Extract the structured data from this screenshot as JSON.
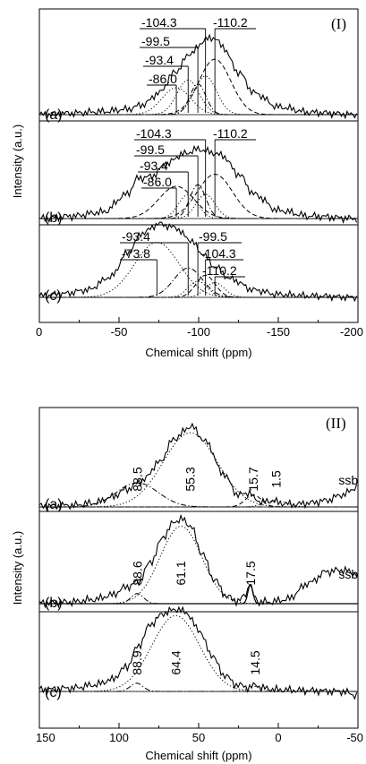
{
  "chart_data": [
    {
      "type": "line",
      "panel_label": "(I)",
      "xlabel": "Chemical shift (ppm)",
      "ylabel": "Intensity (a.u.)",
      "xlim": [
        0,
        -200
      ],
      "xticks": [
        {
          "value": 0,
          "label": "0"
        },
        {
          "value": -50,
          "label": "-50"
        },
        {
          "value": -100,
          "label": "-100"
        },
        {
          "value": -150,
          "label": "-150"
        },
        {
          "value": -200,
          "label": "-200"
        }
      ],
      "spectra": [
        {
          "label": "(a)",
          "measured": {
            "x": [
              0,
              -20,
              -40,
              -55,
              -65,
              -75,
              -85,
              -95,
              -105,
              -110,
              -115,
              -125,
              -135,
              -150,
              -170,
              -200
            ],
            "y": [
              0.0,
              0.02,
              0.04,
              0.07,
              0.13,
              0.28,
              0.55,
              0.8,
              0.98,
              1.0,
              0.88,
              0.55,
              0.28,
              0.1,
              0.03,
              0.0
            ]
          },
          "components": [
            {
              "center": -86.0,
              "height": 0.35,
              "width": 9,
              "style": "dotted"
            },
            {
              "center": -93.4,
              "height": 0.45,
              "width": 7,
              "style": "dotted"
            },
            {
              "center": -99.5,
              "height": 0.4,
              "width": 5,
              "style": "dashdot"
            },
            {
              "center": -104.3,
              "height": 0.5,
              "width": 7,
              "style": "dotted"
            },
            {
              "center": -110.2,
              "height": 0.72,
              "width": 10,
              "style": "dashed"
            }
          ],
          "peak_labels": [
            {
              "text": "-104.3",
              "x": -104.3,
              "row": 0,
              "side": "left"
            },
            {
              "text": "-99.5",
              "x": -99.5,
              "row": 1,
              "side": "left"
            },
            {
              "text": "-93.4",
              "x": -93.4,
              "row": 2,
              "side": "left"
            },
            {
              "text": "-86.0",
              "x": -86.0,
              "row": 3,
              "side": "left"
            },
            {
              "text": "-110.2",
              "x": -110.2,
              "row": 0,
              "side": "right"
            }
          ]
        },
        {
          "label": "(b)",
          "measured": {
            "x": [
              0,
              -20,
              -40,
              -55,
              -62,
              -70,
              -80,
              -90,
              -100,
              -108,
              -115,
              -125,
              -135,
              -150,
              -170,
              -200
            ],
            "y": [
              0.0,
              0.03,
              0.08,
              0.3,
              0.5,
              0.52,
              0.68,
              0.8,
              0.86,
              0.82,
              0.78,
              0.55,
              0.3,
              0.1,
              0.03,
              0.0
            ]
          },
          "components": [
            {
              "center": -86.0,
              "height": 0.4,
              "width": 11,
              "style": "dashed"
            },
            {
              "center": -93.4,
              "height": 0.3,
              "width": 6,
              "style": "dotted"
            },
            {
              "center": -99.5,
              "height": 0.42,
              "width": 5,
              "style": "dashdot"
            },
            {
              "center": -104.3,
              "height": 0.3,
              "width": 6,
              "style": "dotted"
            },
            {
              "center": -110.2,
              "height": 0.55,
              "width": 11,
              "style": "dashed"
            }
          ],
          "peak_labels": [
            {
              "text": "-104.3",
              "x": -104.3,
              "row": 0,
              "side": "left"
            },
            {
              "text": "-99.5",
              "x": -99.5,
              "row": 1,
              "side": "left"
            },
            {
              "text": "-93.4",
              "x": -93.4,
              "row": 2,
              "side": "left"
            },
            {
              "text": "-86.0",
              "x": -86.0,
              "row": 3,
              "side": "left"
            },
            {
              "text": "-110.2",
              "x": -110.2,
              "row": 0,
              "side": "right"
            }
          ]
        },
        {
          "label": "(c)",
          "measured": {
            "x": [
              0,
              -15,
              -30,
              -45,
              -55,
              -65,
              -75,
              -85,
              -95,
              -102,
              -110,
              -120,
              -135,
              -150,
              -170,
              -200
            ],
            "y": [
              0.02,
              0.05,
              0.1,
              0.28,
              0.6,
              0.88,
              1.0,
              0.95,
              0.78,
              0.6,
              0.42,
              0.25,
              0.1,
              0.04,
              0.02,
              0.0
            ]
          },
          "components": [
            {
              "center": -73.8,
              "height": 0.75,
              "width": 14,
              "style": "dotted"
            },
            {
              "center": -93.4,
              "height": 0.4,
              "width": 9,
              "style": "dashdot"
            },
            {
              "center": -99.5,
              "height": 0.22,
              "width": 6,
              "style": "dotted"
            },
            {
              "center": -104.3,
              "height": 0.3,
              "width": 6,
              "style": "dashed"
            },
            {
              "center": -110.2,
              "height": 0.2,
              "width": 6,
              "style": "dotted"
            }
          ],
          "peak_labels": [
            {
              "text": "-93.4",
              "x": -93.4,
              "row": 0,
              "side": "left"
            },
            {
              "text": "-73.8",
              "x": -73.8,
              "row": 1,
              "side": "left"
            },
            {
              "text": "-99.5",
              "x": -99.5,
              "row": 0,
              "side": "right"
            },
            {
              "text": "-104.3",
              "x": -104.3,
              "row": 1,
              "side": "right"
            },
            {
              "text": "-110.2",
              "x": -110.2,
              "row": 2,
              "side": "right"
            }
          ]
        }
      ]
    },
    {
      "type": "line",
      "panel_label": "(II)",
      "xlabel": "Chemical shift (ppm)",
      "ylabel": "Intensity (a.u.)",
      "xlim": [
        150,
        -50
      ],
      "xticks": [
        {
          "value": 150,
          "label": "150"
        },
        {
          "value": 100,
          "label": "100"
        },
        {
          "value": 50,
          "label": "50"
        },
        {
          "value": 0,
          "label": "0"
        },
        {
          "value": -50,
          "label": "-50"
        }
      ],
      "spectra": [
        {
          "label": "(a)",
          "measured": {
            "x": [
              150,
              130,
              115,
              105,
              95,
              85,
              75,
              65,
              55,
              45,
              35,
              25,
              18,
              15,
              10,
              3,
              0,
              -10,
              -20,
              -30,
              -40,
              -50
            ],
            "y": [
              0.01,
              0.02,
              0.05,
              0.12,
              0.22,
              0.33,
              0.55,
              0.85,
              1.0,
              0.8,
              0.42,
              0.15,
              0.18,
              0.1,
              0.06,
              0.08,
              0.05,
              0.03,
              0.05,
              0.08,
              0.15,
              0.25
            ]
          },
          "components": [
            {
              "center": 88.5,
              "height": 0.3,
              "width": 13,
              "style": "dashdot"
            },
            {
              "center": 55.3,
              "height": 0.92,
              "width": 17,
              "style": "dotted"
            },
            {
              "center": 15.7,
              "height": 0.15,
              "width": 5,
              "style": "dashed"
            },
            {
              "center": 1.5,
              "height": 0.08,
              "width": 7,
              "style": "dotted"
            }
          ],
          "peak_labels": [
            {
              "text": "88.5",
              "x": 88.5
            },
            {
              "text": "55.3",
              "x": 55.3
            },
            {
              "text": "15.7",
              "x": 15.7
            },
            {
              "text": "1.5",
              "x": 1.5
            },
            {
              "text": "ssb",
              "x": -44,
              "kind": "ssb"
            }
          ]
        },
        {
          "label": "(b)",
          "measured": {
            "x": [
              150,
              130,
              115,
              105,
              95,
              88,
              80,
              72,
              65,
              60,
              55,
              48,
              40,
              32,
              25,
              20,
              18,
              16,
              12,
              5,
              -5,
              -20,
              -30,
              -40,
              -50
            ],
            "y": [
              0.01,
              0.02,
              0.05,
              0.1,
              0.2,
              0.26,
              0.5,
              0.8,
              0.98,
              1.0,
              0.92,
              0.6,
              0.28,
              0.08,
              0.03,
              0.12,
              0.26,
              0.1,
              0.02,
              0.02,
              0.05,
              0.25,
              0.38,
              0.4,
              0.35
            ]
          },
          "components": [
            {
              "center": 88.6,
              "height": 0.12,
              "width": 4,
              "style": "dashdot"
            },
            {
              "center": 61.1,
              "height": 0.92,
              "width": 13,
              "style": "dotted"
            },
            {
              "center": 17.5,
              "height": 0.24,
              "width": 1.5,
              "style": "solid"
            }
          ],
          "peak_labels": [
            {
              "text": "88.6",
              "x": 88.6
            },
            {
              "text": "61.1",
              "x": 61.1
            },
            {
              "text": "17.5",
              "x": 17.5
            },
            {
              "text": "ssb",
              "x": -44,
              "kind": "ssb"
            }
          ]
        },
        {
          "label": "(c)",
          "measured": {
            "x": [
              150,
              130,
              115,
              105,
              95,
              88,
              80,
              72,
              64,
              58,
              50,
              42,
              34,
              26,
              18,
              14,
              10,
              0,
              -20,
              -40,
              -50
            ],
            "y": [
              0.02,
              0.04,
              0.08,
              0.14,
              0.3,
              0.55,
              0.82,
              0.95,
              1.0,
              0.96,
              0.75,
              0.45,
              0.2,
              0.08,
              0.05,
              0.08,
              0.04,
              0.02,
              0.01,
              0.0,
              -0.05
            ]
          },
          "components": [
            {
              "center": 88.9,
              "height": 0.1,
              "width": 4,
              "style": "dashdot"
            },
            {
              "center": 64.4,
              "height": 0.92,
              "width": 15,
              "style": "dotted"
            },
            {
              "center": 14.5,
              "height": 0.06,
              "width": 5,
              "style": "dotted"
            }
          ],
          "peak_labels": [
            {
              "text": "88.9",
              "x": 88.9
            },
            {
              "text": "64.4",
              "x": 64.4
            },
            {
              "text": "14.5",
              "x": 14.5
            }
          ]
        }
      ]
    }
  ]
}
